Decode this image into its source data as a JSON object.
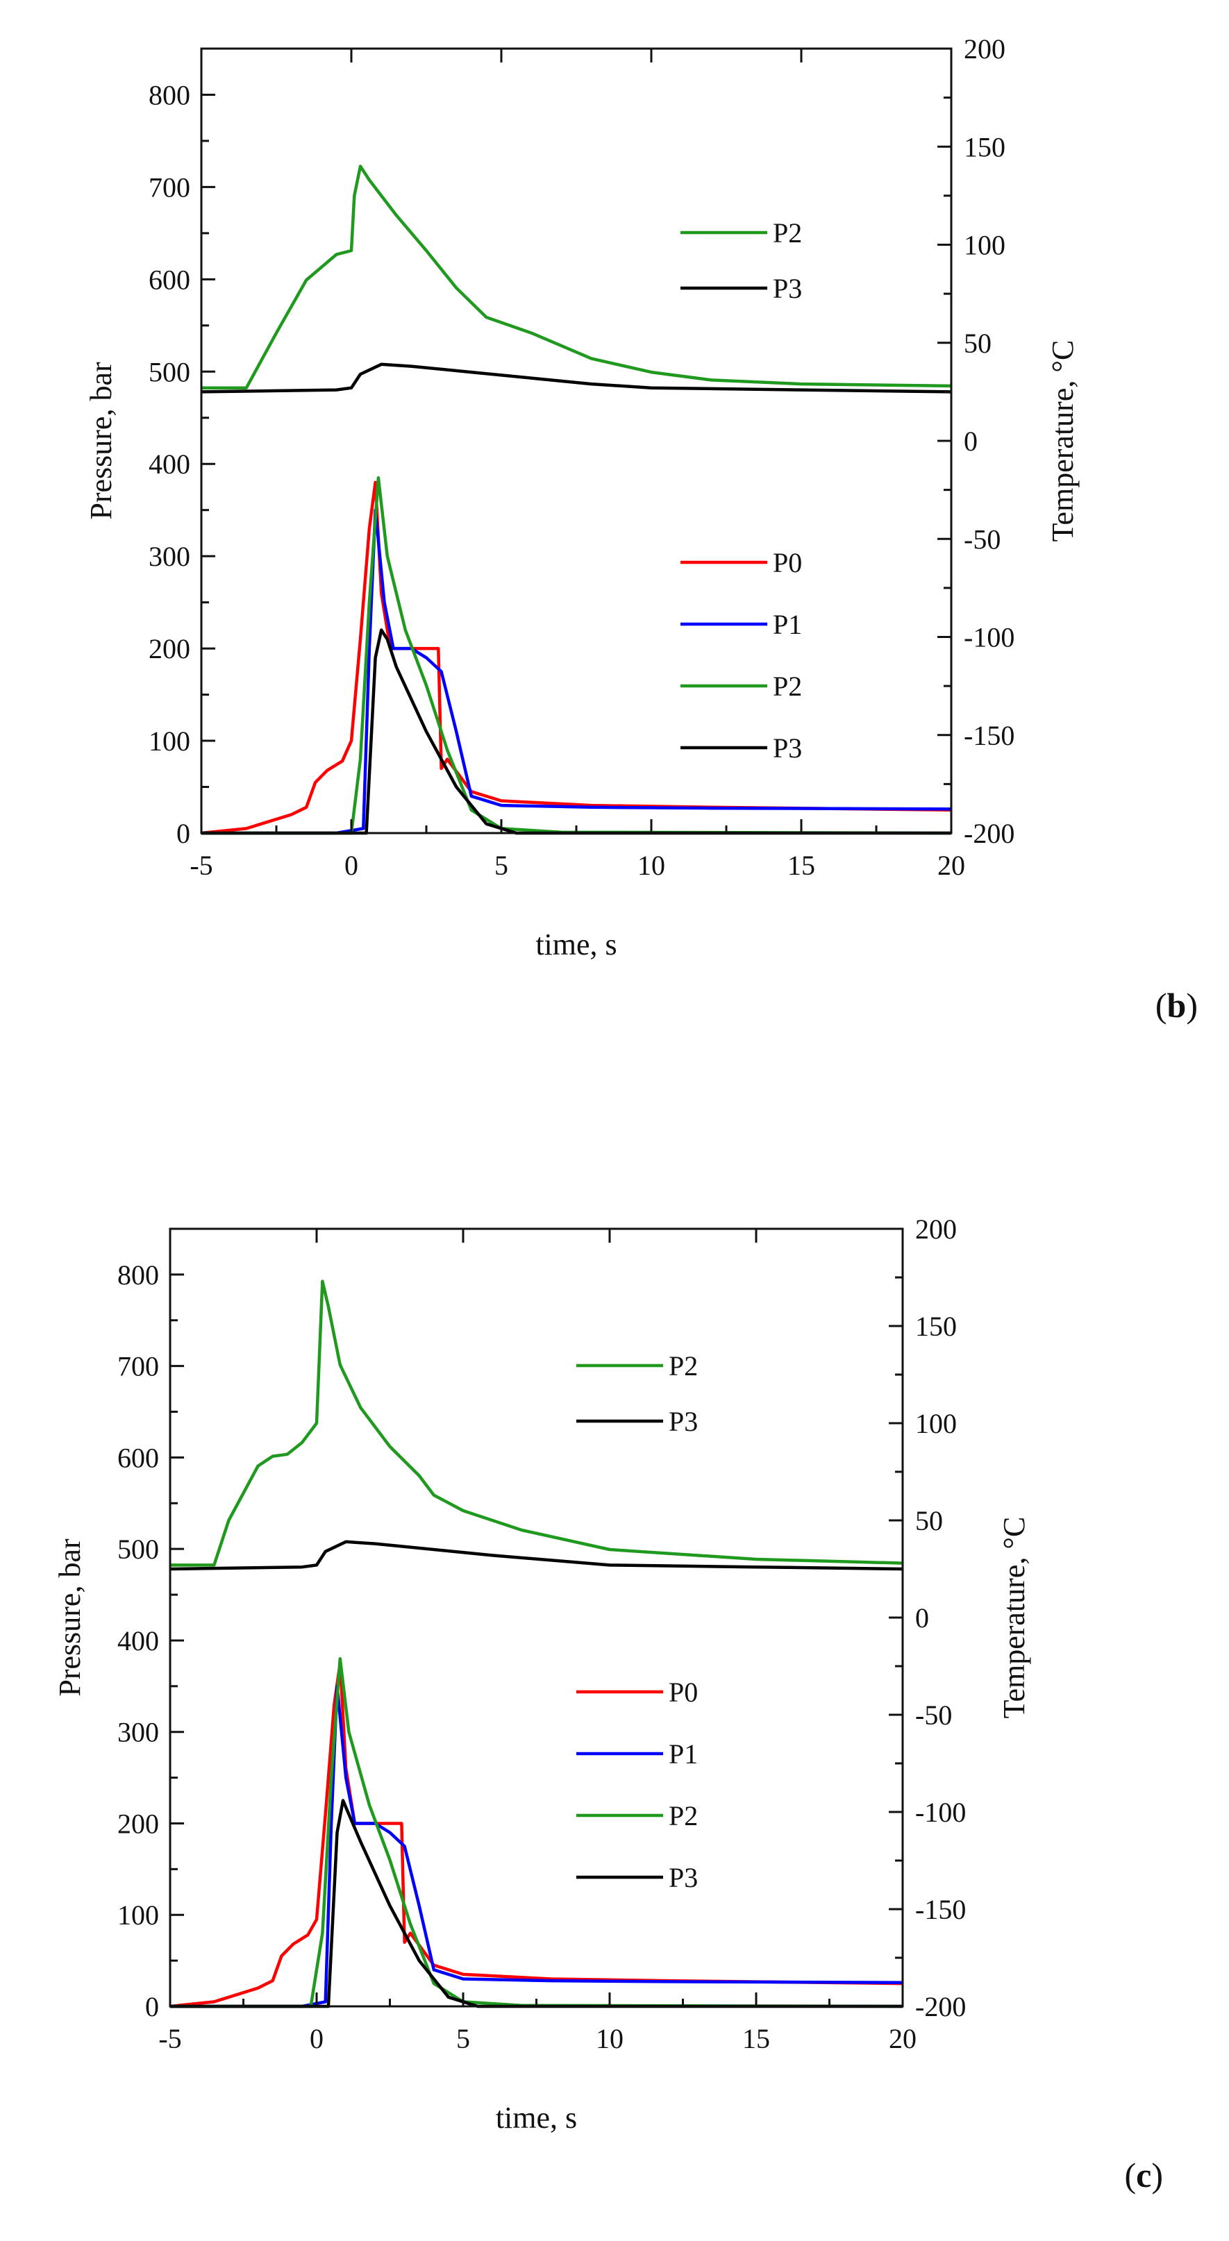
{
  "chart_data": [
    {
      "panel_label": "b",
      "type": "line",
      "xlabel": "time, s",
      "ylabel": "Pressure, bar",
      "y2label": "Temperature, °C",
      "xlim": [
        -5,
        20
      ],
      "ylim": [
        0,
        850
      ],
      "y2lim": [
        -200,
        200
      ],
      "xticks": [
        -5,
        0,
        5,
        10,
        15,
        20
      ],
      "yticks": [
        0,
        100,
        200,
        300,
        400,
        500,
        600,
        700,
        800
      ],
      "y2ticks": [
        -200,
        -150,
        -100,
        -50,
        0,
        50,
        100,
        150,
        200
      ],
      "grid": false,
      "legends": [
        {
          "placement": "upper-right",
          "entries": [
            {
              "label": "P2",
              "color": "#1f9a1f"
            },
            {
              "label": "P3",
              "color": "#000000"
            }
          ]
        },
        {
          "placement": "middle-right",
          "entries": [
            {
              "label": "P0",
              "color": "#ff0000"
            },
            {
              "label": "P1",
              "color": "#0000ff"
            },
            {
              "label": "P2",
              "color": "#1f9a1f"
            },
            {
              "label": "P3",
              "color": "#000000"
            }
          ]
        }
      ],
      "series": [
        {
          "name": "P2",
          "axis": "right",
          "color": "#1f9a1f",
          "x": [
            -5,
            -3.5,
            -2.5,
            -1.5,
            -0.5,
            0,
            0.1,
            0.3,
            0.6,
            1,
            1.5,
            2.5,
            3.5,
            4.5,
            6,
            8,
            10,
            12,
            15,
            20
          ],
          "y": [
            27,
            27,
            55,
            82,
            95,
            97,
            125,
            140,
            133,
            125,
            115,
            97,
            78,
            63,
            55,
            42,
            35,
            31,
            29,
            28
          ]
        },
        {
          "name": "P3",
          "axis": "right",
          "color": "#000000",
          "x": [
            -5,
            -0.5,
            0,
            0.3,
            1,
            2,
            4,
            6,
            8,
            10,
            15,
            20
          ],
          "y": [
            25,
            26,
            27,
            34,
            39,
            38,
            35,
            32,
            29,
            27,
            26,
            25
          ]
        },
        {
          "name": "P0",
          "axis": "left",
          "color": "#ff0000",
          "x": [
            -5,
            -3.5,
            -3,
            -2,
            -1.5,
            -1.2,
            -0.8,
            -0.3,
            0,
            0.3,
            0.6,
            0.8,
            1,
            1.3,
            2,
            2.9,
            3,
            3.2,
            4,
            5,
            8,
            12,
            20
          ],
          "y": [
            0,
            5,
            10,
            20,
            28,
            55,
            68,
            78,
            100,
            210,
            330,
            380,
            260,
            200,
            200,
            200,
            70,
            80,
            45,
            35,
            30,
            28,
            25
          ]
        },
        {
          "name": "P1",
          "axis": "left",
          "color": "#0000ff",
          "x": [
            -5,
            -0.5,
            0.4,
            0.6,
            0.8,
            1.1,
            1.4,
            2,
            2.5,
            3,
            3.5,
            4,
            5,
            8,
            12,
            20
          ],
          "y": [
            0,
            0,
            5,
            200,
            350,
            250,
            200,
            200,
            190,
            175,
            110,
            40,
            30,
            28,
            27,
            26
          ]
        },
        {
          "name": "P2",
          "axis": "left",
          "color": "#1f9a1f",
          "x": [
            -5,
            0,
            0.3,
            0.6,
            0.9,
            1.2,
            1.8,
            2.5,
            3.2,
            4,
            5,
            7,
            20
          ],
          "y": [
            0,
            0,
            80,
            250,
            385,
            300,
            220,
            160,
            90,
            25,
            5,
            1,
            0
          ]
        },
        {
          "name": "P3",
          "axis": "left",
          "color": "#000000",
          "x": [
            -5,
            0.5,
            0.8,
            1,
            1.2,
            1.5,
            2.5,
            3.5,
            4.5,
            5.5,
            20
          ],
          "y": [
            0,
            0,
            190,
            220,
            210,
            180,
            110,
            50,
            10,
            0,
            0
          ]
        }
      ]
    },
    {
      "panel_label": "c",
      "type": "line",
      "xlabel": "time, s",
      "ylabel": "Pressure, bar",
      "y2label": "Temperature, °C",
      "xlim": [
        -5,
        20
      ],
      "ylim": [
        0,
        850
      ],
      "y2lim": [
        -200,
        200
      ],
      "xticks": [
        -5,
        0,
        5,
        10,
        15,
        20
      ],
      "yticks": [
        0,
        100,
        200,
        300,
        400,
        500,
        600,
        700,
        800
      ],
      "y2ticks": [
        -200,
        -150,
        -100,
        -50,
        0,
        50,
        100,
        150,
        200
      ],
      "grid": false,
      "legends": [
        {
          "placement": "upper-right",
          "entries": [
            {
              "label": "P2",
              "color": "#1f9a1f"
            },
            {
              "label": "P3",
              "color": "#000000"
            }
          ]
        },
        {
          "placement": "middle-right",
          "entries": [
            {
              "label": "P0",
              "color": "#ff0000"
            },
            {
              "label": "P1",
              "color": "#0000ff"
            },
            {
              "label": "P2",
              "color": "#1f9a1f"
            },
            {
              "label": "P3",
              "color": "#000000"
            }
          ]
        }
      ],
      "series": [
        {
          "name": "P2",
          "axis": "right",
          "color": "#1f9a1f",
          "x": [
            -5,
            -3.5,
            -3,
            -2,
            -1.5,
            -1,
            -0.5,
            0,
            0.2,
            0.4,
            0.8,
            1.5,
            2.5,
            3.5,
            4,
            5,
            7,
            10,
            15,
            20
          ],
          "y": [
            27,
            27,
            50,
            78,
            83,
            84,
            90,
            100,
            173,
            160,
            130,
            108,
            88,
            73,
            63,
            55,
            45,
            35,
            30,
            28
          ]
        },
        {
          "name": "P3",
          "axis": "right",
          "color": "#000000",
          "x": [
            -5,
            -0.5,
            0,
            0.3,
            1,
            2,
            4,
            6,
            10,
            15,
            20
          ],
          "y": [
            25,
            26,
            27,
            34,
            39,
            38,
            35,
            32,
            27,
            26,
            25
          ]
        },
        {
          "name": "P0",
          "axis": "left",
          "color": "#ff0000",
          "x": [
            -5,
            -3.5,
            -3,
            -2,
            -1.5,
            -1.2,
            -0.8,
            -0.3,
            0,
            0.3,
            0.6,
            0.8,
            1,
            1.3,
            2,
            2.9,
            3,
            3.2,
            4,
            5,
            8,
            12,
            20
          ],
          "y": [
            0,
            5,
            10,
            20,
            28,
            55,
            68,
            78,
            95,
            210,
            330,
            375,
            260,
            200,
            200,
            200,
            70,
            80,
            45,
            35,
            30,
            28,
            25
          ]
        },
        {
          "name": "P1",
          "axis": "left",
          "color": "#0000ff",
          "x": [
            -5,
            -0.5,
            0.3,
            0.5,
            0.7,
            1,
            1.3,
            2,
            2.5,
            3,
            3.5,
            4,
            5,
            8,
            12,
            20
          ],
          "y": [
            0,
            0,
            5,
            200,
            350,
            250,
            200,
            200,
            190,
            175,
            110,
            40,
            30,
            28,
            27,
            26
          ]
        },
        {
          "name": "P2",
          "axis": "left",
          "color": "#1f9a1f",
          "x": [
            -5,
            -0.2,
            0.2,
            0.5,
            0.8,
            1.1,
            1.8,
            2.5,
            3.2,
            4,
            5,
            7,
            20
          ],
          "y": [
            0,
            0,
            80,
            250,
            380,
            300,
            220,
            160,
            90,
            25,
            5,
            1,
            0
          ]
        },
        {
          "name": "P3",
          "axis": "left",
          "color": "#000000",
          "x": [
            -5,
            0.4,
            0.7,
            0.9,
            1.1,
            1.5,
            2.5,
            3.5,
            4.5,
            5.5,
            20
          ],
          "y": [
            0,
            0,
            190,
            225,
            210,
            180,
            110,
            50,
            10,
            0,
            0
          ]
        }
      ]
    }
  ]
}
